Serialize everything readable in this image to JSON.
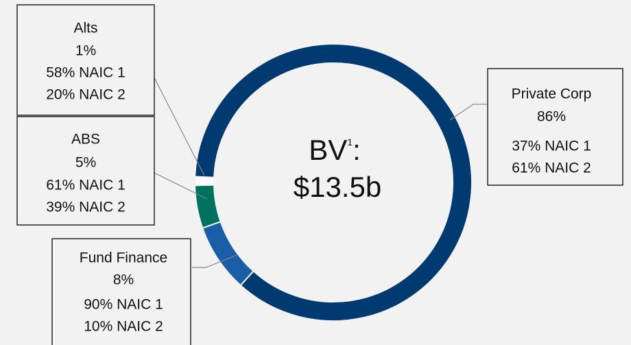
{
  "chart_data": {
    "type": "donut",
    "categories": [
      "Fund Finance",
      "ABS",
      "Alts",
      "Private Corp"
    ],
    "values": [
      8,
      5,
      1,
      86
    ],
    "value_labels": [
      "8%",
      "5%",
      "1%",
      "86%"
    ],
    "colors": [
      "#1a5ea8",
      "#00705f",
      "#ffffff",
      "#003a70"
    ],
    "details": [
      [
        "90% NAIC 1",
        "10% NAIC 2"
      ],
      [
        "61% NAIC 1",
        "39% NAIC 2"
      ],
      [
        "58% NAIC 1",
        "20% NAIC 2"
      ],
      [
        "37% NAIC 1",
        "61% NAIC 2"
      ]
    ],
    "center_label": {
      "text": "BV",
      "superscript": "1",
      "suffix": ":",
      "value": "$13.5b"
    }
  }
}
